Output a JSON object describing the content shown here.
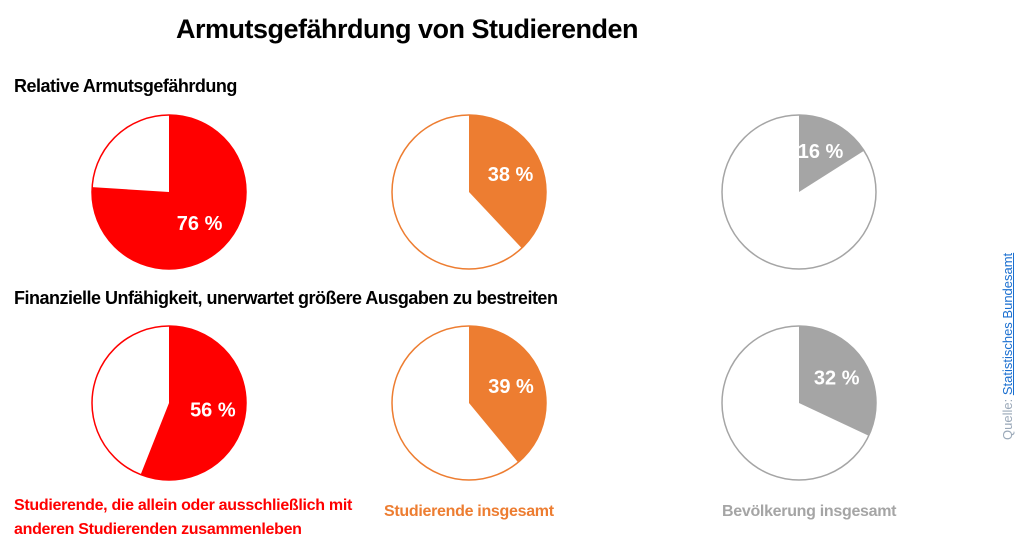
{
  "title": "Armutsgefährdung von Studierenden",
  "source": {
    "prefix": "Quelle:",
    "link": "Statistisches Bundesamt"
  },
  "groups": [
    {
      "name": "Studierende, die allein oder ausschließlich mit anderen Studierenden zusammenleben",
      "color": "#ff0000"
    },
    {
      "name": "Studierende insgesamt",
      "color": "#ed7d31"
    },
    {
      "name": "Bevölkerung insgesamt",
      "color": "#a5a5a5"
    }
  ],
  "chart_data": [
    {
      "type": "pie",
      "title": "Relative Armutsgefährdung",
      "values": [
        76,
        38,
        16
      ],
      "value_labels": [
        "76 %",
        "38 %",
        "16 %"
      ]
    },
    {
      "type": "pie",
      "title": "Finanzielle Unfähigkeit, unerwartet größere Ausgaben zu bestreiten",
      "values": [
        56,
        39,
        32
      ],
      "value_labels": [
        "56 %",
        "39 %",
        "32 %"
      ]
    }
  ]
}
